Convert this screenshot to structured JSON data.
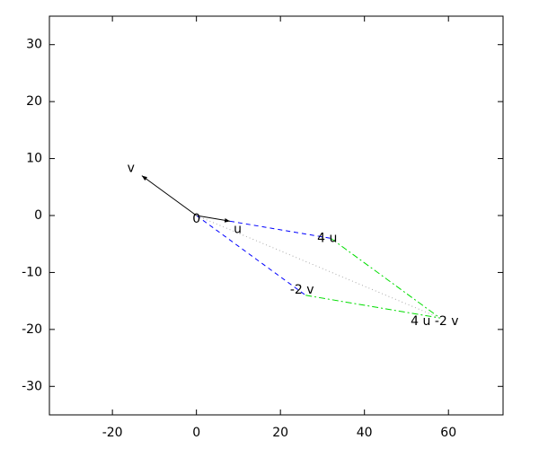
{
  "chart_data": {
    "type": "vector",
    "xlim": [
      -35,
      73
    ],
    "ylim": [
      -35,
      35
    ],
    "xticks": [
      -20,
      0,
      20,
      40,
      60
    ],
    "yticks": [
      -30,
      -20,
      -10,
      0,
      10,
      20,
      30
    ],
    "points": [
      {
        "label": "0",
        "x": 0,
        "y": 0
      },
      {
        "label": "u",
        "x": 8,
        "y": -1
      },
      {
        "label": "v",
        "x": -13,
        "y": 7
      },
      {
        "label": "4 u",
        "x": 32,
        "y": -4
      },
      {
        "label": "-2 v",
        "x": 26,
        "y": -14
      },
      {
        "label": "4 u -2 v",
        "x": 58,
        "y": -18
      }
    ],
    "segments": [
      {
        "from": 0,
        "to": 1,
        "color": "#000000",
        "style": "solid",
        "arrow": true
      },
      {
        "from": 0,
        "to": 2,
        "color": "#000000",
        "style": "solid",
        "arrow": true
      },
      {
        "from": 1,
        "to": 3,
        "color": "#0000ff",
        "style": "dashed",
        "arrow": false
      },
      {
        "from": 0,
        "to": 4,
        "color": "#0000ff",
        "style": "dashed",
        "arrow": false
      },
      {
        "from": 3,
        "to": 5,
        "color": "#00dd00",
        "style": "dashdot",
        "arrow": false
      },
      {
        "from": 4,
        "to": 5,
        "color": "#00dd00",
        "style": "dashdot",
        "arrow": false
      },
      {
        "from": 0,
        "to": 5,
        "color": "#aaaaaa",
        "style": "dotted",
        "arrow": false
      }
    ]
  }
}
